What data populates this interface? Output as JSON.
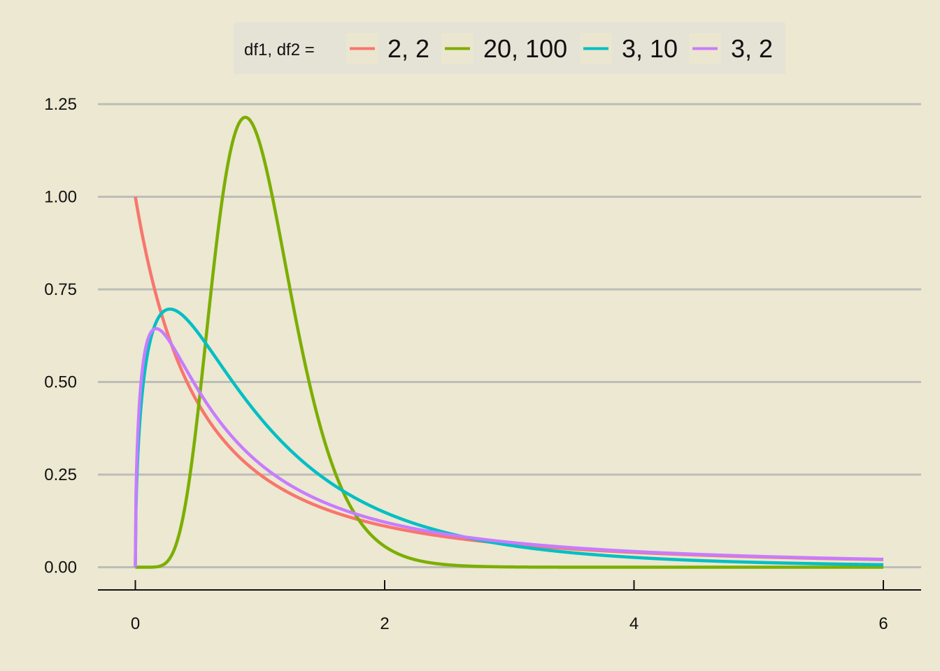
{
  "chart_data": {
    "type": "line",
    "title": "",
    "xlabel": "",
    "ylabel": "",
    "xlim": [
      0,
      6
    ],
    "ylim": [
      0,
      1.25
    ],
    "x_ticks": [
      "0",
      "2",
      "4",
      "6"
    ],
    "y_ticks": [
      "0.00",
      "0.25",
      "0.50",
      "0.75",
      "1.00",
      "1.25"
    ],
    "grid": "horizontal",
    "legend": {
      "position": "top",
      "title": "df1, df2 =",
      "entries": [
        "2, 2",
        "20, 100",
        "3, 10",
        "3, 2"
      ]
    },
    "series": [
      {
        "name": "2, 2",
        "df1": 2,
        "df2": 2,
        "color": "#f8766d",
        "x": [
          0,
          0.25,
          0.5,
          1,
          2,
          4,
          6
        ],
        "values": [
          1.0,
          0.64,
          0.444,
          0.25,
          0.111,
          0.04,
          0.02
        ]
      },
      {
        "name": "20, 100",
        "df1": 20,
        "df2": 100,
        "color": "#7cae00",
        "x": [
          0,
          0.3,
          0.5,
          0.7,
          0.88,
          1.0,
          1.5,
          2,
          3,
          6
        ],
        "values": [
          0,
          0.02,
          0.26,
          0.95,
          1.21,
          1.12,
          0.3,
          0.05,
          0.0,
          0
        ]
      },
      {
        "name": "3, 10",
        "df1": 3,
        "df2": 10,
        "color": "#00bfc4",
        "x": [
          0,
          0.28,
          0.5,
          1,
          2,
          4,
          6
        ],
        "values": [
          0,
          0.7,
          0.64,
          0.44,
          0.15,
          0.02,
          0.006
        ]
      },
      {
        "name": "3, 2",
        "df1": 3,
        "df2": 2,
        "color": "#c77cff",
        "x": [
          0,
          0.18,
          0.5,
          1,
          2,
          4,
          6
        ],
        "values": [
          0,
          0.645,
          0.5,
          0.31,
          0.13,
          0.04,
          0.02
        ]
      }
    ]
  }
}
